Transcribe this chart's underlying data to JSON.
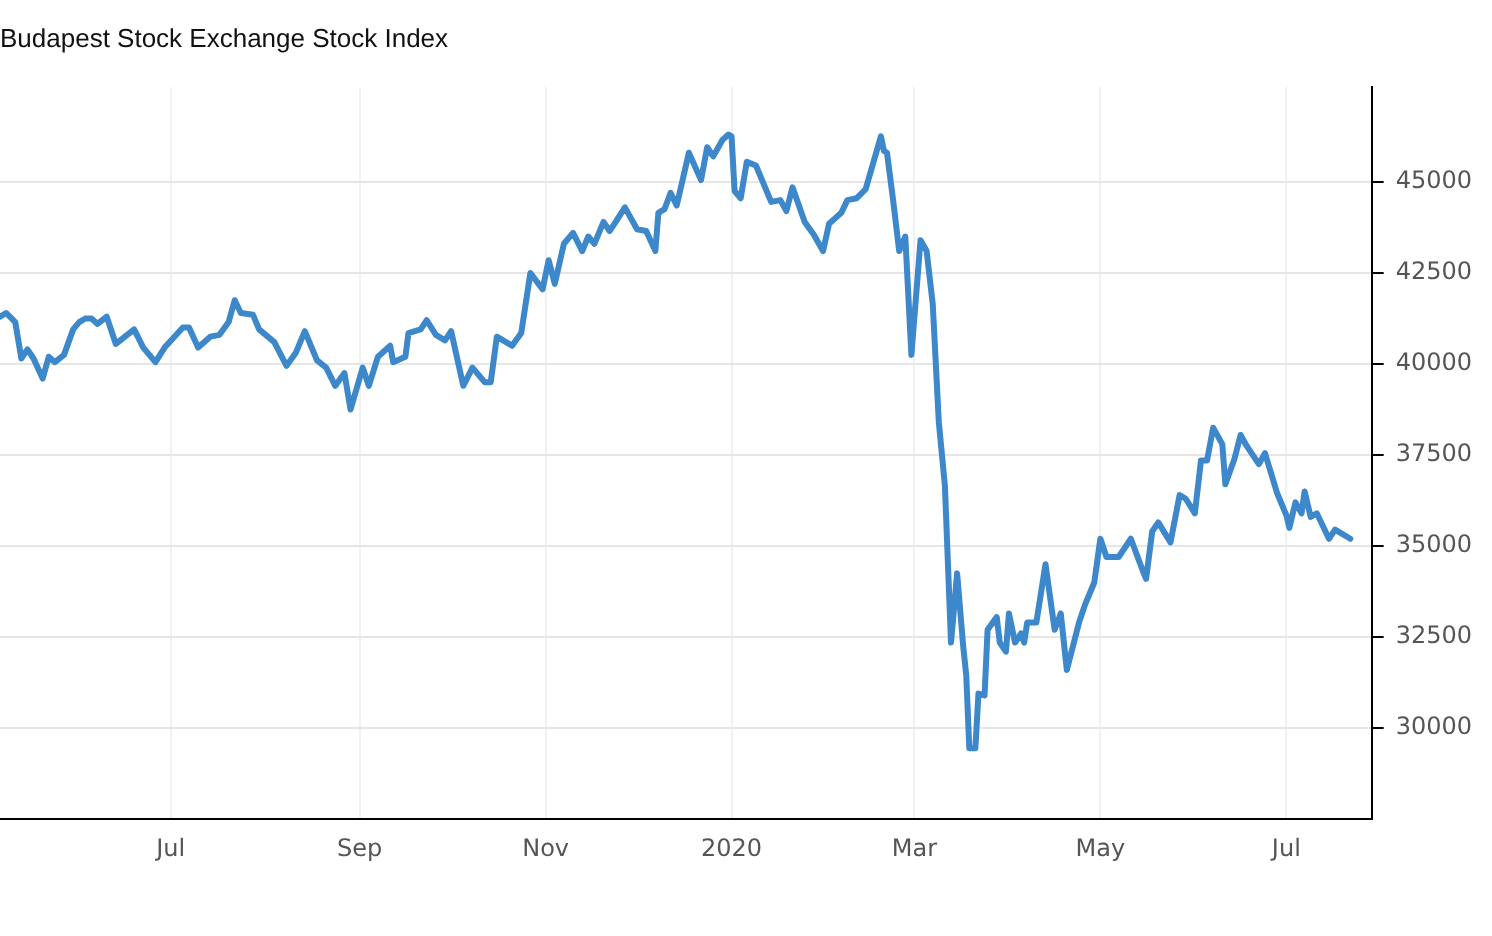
{
  "chart_data": {
    "type": "line",
    "title": "Budapest Stock Exchange Stock Index",
    "x": [
      "2019-05-06",
      "2019-05-08",
      "2019-05-11",
      "2019-05-13",
      "2019-05-15",
      "2019-05-17",
      "2019-05-20",
      "2019-05-22",
      "2019-05-24",
      "2019-05-27",
      "2019-05-30",
      "2019-06-01",
      "2019-06-03",
      "2019-06-05",
      "2019-06-07",
      "2019-06-10",
      "2019-06-13",
      "2019-06-19",
      "2019-06-22",
      "2019-06-26",
      "2019-06-29",
      "2019-07-05",
      "2019-07-07",
      "2019-07-10",
      "2019-07-14",
      "2019-07-17",
      "2019-07-20",
      "2019-07-22",
      "2019-07-24",
      "2019-07-28",
      "2019-07-30",
      "2019-08-04",
      "2019-08-08",
      "2019-08-11",
      "2019-08-14",
      "2019-08-18",
      "2019-08-21",
      "2019-08-24",
      "2019-08-27",
      "2019-08-29",
      "2019-09-02",
      "2019-09-04",
      "2019-09-07",
      "2019-09-11",
      "2019-09-12",
      "2019-09-16",
      "2019-09-17",
      "2019-09-21",
      "2019-09-23",
      "2019-09-26",
      "2019-09-29",
      "2019-10-01",
      "2019-10-05",
      "2019-10-08",
      "2019-10-12",
      "2019-10-14",
      "2019-10-16",
      "2019-10-21",
      "2019-10-24",
      "2019-10-27",
      "2019-10-31",
      "2019-11-02",
      "2019-11-04",
      "2019-11-07",
      "2019-11-10",
      "2019-11-13",
      "2019-11-15",
      "2019-11-17",
      "2019-11-20",
      "2019-11-22",
      "2019-11-24",
      "2019-11-27",
      "2019-12-01",
      "2019-12-04",
      "2019-12-07",
      "2019-12-08",
      "2019-12-10",
      "2019-12-12",
      "2019-12-14",
      "2019-12-18",
      "2019-12-22",
      "2019-12-24",
      "2019-12-26",
      "2019-12-29",
      "2019-12-31",
      "2020-01-01",
      "2020-01-02",
      "2020-01-04",
      "2020-01-06",
      "2020-01-09",
      "2020-01-14",
      "2020-01-17",
      "2020-01-19",
      "2020-01-21",
      "2020-01-25",
      "2020-01-28",
      "2020-01-31",
      "2020-02-02",
      "2020-02-06",
      "2020-02-08",
      "2020-02-11",
      "2020-02-14",
      "2020-02-19",
      "2020-02-20",
      "2020-02-21",
      "2020-02-23",
      "2020-02-25",
      "2020-02-27",
      "2020-02-29",
      "2020-03-03",
      "2020-03-05",
      "2020-03-07",
      "2020-03-09",
      "2020-03-11",
      "2020-03-13",
      "2020-03-15",
      "2020-03-17",
      "2020-03-18",
      "2020-03-19",
      "2020-03-21",
      "2020-03-22",
      "2020-03-24",
      "2020-03-25",
      "2020-03-28",
      "2020-03-29",
      "2020-03-31",
      "2020-04-01",
      "2020-04-03",
      "2020-04-05",
      "2020-04-06",
      "2020-04-07",
      "2020-04-10",
      "2020-04-13",
      "2020-04-16",
      "2020-04-18",
      "2020-04-20",
      "2020-04-24",
      "2020-04-26",
      "2020-04-29",
      "2020-05-01",
      "2020-05-03",
      "2020-05-07",
      "2020-05-11",
      "2020-05-15",
      "2020-05-16",
      "2020-05-18",
      "2020-05-20",
      "2020-05-24",
      "2020-05-27",
      "2020-05-29",
      "2020-06-01",
      "2020-06-03",
      "2020-06-05",
      "2020-06-07",
      "2020-06-10",
      "2020-06-11",
      "2020-06-14",
      "2020-06-16",
      "2020-06-18",
      "2020-06-22",
      "2020-06-24",
      "2020-06-26",
      "2020-06-28",
      "2020-07-01",
      "2020-07-02",
      "2020-07-04",
      "2020-07-06",
      "2020-07-07",
      "2020-07-09",
      "2020-07-11",
      "2020-07-15",
      "2020-07-17",
      "2020-07-22"
    ],
    "series": [
      {
        "color": "#3d87cb",
        "values": [
          41300,
          41400,
          41150,
          40150,
          40400,
          40150,
          39600,
          40200,
          40050,
          40250,
          40950,
          41150,
          41250,
          41250,
          41100,
          41300,
          40550,
          40950,
          40450,
          40050,
          40450,
          41000,
          41000,
          40450,
          40750,
          40800,
          41150,
          41750,
          41400,
          41350,
          40950,
          40600,
          39950,
          40300,
          40900,
          40100,
          39900,
          39400,
          39750,
          38750,
          39900,
          39400,
          40200,
          40500,
          40050,
          40200,
          40850,
          40950,
          41200,
          40800,
          40650,
          40900,
          39400,
          39900,
          39500,
          39500,
          40750,
          40500,
          40850,
          42500,
          42050,
          42850,
          42200,
          43300,
          43600,
          43100,
          43500,
          43300,
          43900,
          43650,
          43900,
          44300,
          43700,
          43650,
          43100,
          44150,
          44250,
          44700,
          44350,
          45800,
          45050,
          45950,
          45700,
          46150,
          46300,
          46250,
          44750,
          44550,
          45550,
          45450,
          44450,
          44500,
          44200,
          44850,
          43900,
          43550,
          43100,
          43850,
          44150,
          44500,
          44550,
          44800,
          46250,
          45850,
          45800,
          44500,
          43100,
          43500,
          40250,
          43400,
          43100,
          41650,
          38400,
          36650,
          32350,
          34250,
          32250,
          31450,
          29450,
          29450,
          30950,
          30900,
          32700,
          33050,
          32350,
          32100,
          33150,
          32350,
          32600,
          32350,
          32900,
          32900,
          34500,
          32700,
          33150,
          31600,
          32900,
          33400,
          34000,
          35200,
          34700,
          34700,
          35200,
          34300,
          34100,
          35400,
          35650,
          35100,
          36400,
          36300,
          35900,
          37350,
          37350,
          38250,
          37800,
          36700,
          37400,
          38050,
          37750,
          37250,
          37550,
          37000,
          36450,
          35850,
          35500,
          36200,
          35900,
          36500,
          35800,
          35900,
          35200,
          35450,
          35200
        ]
      }
    ],
    "xlim": [
      "2019-05-06",
      "2020-07-29"
    ],
    "xticks": [
      {
        "value": "2019-07-01",
        "label": "Jul"
      },
      {
        "value": "2019-09-01",
        "label": "Sep"
      },
      {
        "value": "2019-11-01",
        "label": "Nov"
      },
      {
        "value": "2020-01-01",
        "label": "2020"
      },
      {
        "value": "2020-03-01",
        "label": "Mar"
      },
      {
        "value": "2020-05-01",
        "label": "May"
      },
      {
        "value": "2020-07-01",
        "label": "Jul"
      }
    ],
    "ylim": [
      27500,
      47600
    ],
    "yticks": [
      30000,
      32500,
      35000,
      37500,
      40000,
      42500,
      45000
    ],
    "grid": true,
    "legend": false,
    "marker": "none",
    "line_style": "solid"
  }
}
